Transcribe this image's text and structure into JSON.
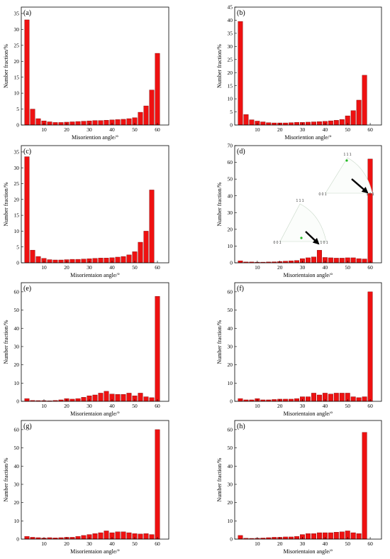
{
  "colors": {
    "bar_fill": "#ee1111",
    "bar_stroke": "#7a0000",
    "axis": "#000000",
    "arrow": "#000000",
    "ipf_point": "#22bb22"
  },
  "chart_data": [
    {
      "type": "bar",
      "panel": "(a)",
      "xlabel": "Misoriention angle/°",
      "ylabel": "Number fraction/%",
      "xlim": [
        0,
        65
      ],
      "ylim": [
        0,
        37
      ],
      "xticks": [
        10,
        20,
        30,
        40,
        50,
        60
      ],
      "yticks": [
        0,
        5,
        10,
        15,
        20,
        25,
        30,
        35
      ],
      "x": [
        2.5,
        5,
        7.5,
        10,
        12.5,
        15,
        17.5,
        20,
        22.5,
        25,
        27.5,
        30,
        32.5,
        35,
        37.5,
        40,
        42.5,
        45,
        47.5,
        50,
        52.5,
        55,
        57.5,
        60
      ],
      "values": [
        33,
        5,
        2,
        1.3,
        1,
        0.8,
        0.8,
        0.9,
        1,
        1.1,
        1.2,
        1.3,
        1.4,
        1.4,
        1.5,
        1.6,
        1.7,
        1.8,
        2,
        2.3,
        4,
        6,
        11,
        22.5
      ]
    },
    {
      "type": "bar",
      "panel": "(b)",
      "xlabel": "Misoriention angle/°",
      "ylabel": "Number fraction/%",
      "xlim": [
        0,
        65
      ],
      "ylim": [
        0,
        45
      ],
      "xticks": [
        10,
        20,
        30,
        40,
        50,
        60
      ],
      "yticks": [
        0,
        5,
        10,
        15,
        20,
        25,
        30,
        35,
        40,
        45
      ],
      "x": [
        2.5,
        5,
        7.5,
        10,
        12.5,
        15,
        17.5,
        20,
        22.5,
        25,
        27.5,
        30,
        32.5,
        35,
        37.5,
        40,
        42.5,
        45,
        47.5,
        50,
        52.5,
        55,
        57.5,
        60
      ],
      "values": [
        39.5,
        4,
        2,
        1.5,
        1.2,
        0.9,
        0.8,
        0.8,
        0.8,
        0.9,
        1,
        1,
        1.1,
        1.2,
        1.3,
        1.4,
        1.6,
        1.8,
        2.1,
        3.5,
        5.5,
        9.5,
        19,
        0
      ]
    },
    {
      "type": "bar",
      "panel": "(c)",
      "xlabel": "Misorientaion angle/°",
      "ylabel": "Number fraction/%",
      "xlim": [
        0,
        65
      ],
      "ylim": [
        0,
        37
      ],
      "xticks": [
        10,
        20,
        30,
        40,
        50,
        60
      ],
      "yticks": [
        0,
        5,
        10,
        15,
        20,
        25,
        30,
        35
      ],
      "x": [
        2.5,
        5,
        7.5,
        10,
        12.5,
        15,
        17.5,
        20,
        22.5,
        25,
        27.5,
        30,
        32.5,
        35,
        37.5,
        40,
        42.5,
        45,
        47.5,
        50,
        52.5,
        55,
        57.5,
        60
      ],
      "values": [
        33.5,
        4,
        2,
        1.4,
        1,
        0.9,
        0.9,
        1,
        1.1,
        1.1,
        1.2,
        1.3,
        1.4,
        1.5,
        1.5,
        1.6,
        1.8,
        2,
        2.5,
        3.5,
        6.5,
        10,
        23,
        0
      ]
    },
    {
      "type": "bar",
      "panel": "(d)",
      "xlabel": "Misorientaion angle/°",
      "ylabel": "Number fraction/%",
      "xlim": [
        0,
        65
      ],
      "ylim": [
        0,
        70
      ],
      "xticks": [
        10,
        20,
        30,
        40,
        50,
        60
      ],
      "yticks": [
        0,
        10,
        20,
        30,
        40,
        50,
        60,
        70
      ],
      "x": [
        2.5,
        5,
        7.5,
        10,
        12.5,
        15,
        17.5,
        20,
        22.5,
        25,
        27.5,
        30,
        32.5,
        35,
        37.5,
        40,
        42.5,
        45,
        47.5,
        50,
        52.5,
        55,
        57.5,
        60
      ],
      "values": [
        1.2,
        0.5,
        0.5,
        0.4,
        0.4,
        0.5,
        0.6,
        0.8,
        1,
        1.2,
        1.4,
        2.5,
        3,
        3.5,
        7.5,
        3.2,
        3,
        2.8,
        2.8,
        3,
        3,
        2.5,
        2.3,
        62
      ],
      "insets": [
        {
          "labels": [
            "1 1 1",
            "0 0 1",
            "1 0 1"
          ]
        },
        {
          "labels": [
            "1 1 1",
            "0 0 1",
            "1 0 1"
          ]
        }
      ]
    },
    {
      "type": "bar",
      "panel": "(e)",
      "xlabel": "Misorientaion angle/°",
      "ylabel": "Number fraction/%",
      "xlim": [
        0,
        65
      ],
      "ylim": [
        0,
        65
      ],
      "xticks": [
        10,
        20,
        30,
        40,
        50,
        60
      ],
      "yticks": [
        0,
        10,
        20,
        30,
        40,
        50,
        60
      ],
      "x": [
        2.5,
        5,
        7.5,
        10,
        12.5,
        15,
        17.5,
        20,
        22.5,
        25,
        27.5,
        30,
        32.5,
        35,
        37.5,
        40,
        42.5,
        45,
        47.5,
        50,
        52.5,
        55,
        57.5,
        60
      ],
      "values": [
        1.5,
        0.5,
        0.4,
        0.4,
        0.3,
        0.5,
        0.8,
        1.5,
        1.2,
        1.5,
        2.2,
        3,
        3.5,
        4.5,
        5.5,
        4,
        3.8,
        3.8,
        4.5,
        3,
        4.5,
        2.5,
        2,
        57.5
      ]
    },
    {
      "type": "bar",
      "panel": "(f)",
      "xlabel": "Misorientaion angle/°",
      "ylabel": "Number fraction/%",
      "xlim": [
        0,
        65
      ],
      "ylim": [
        0,
        65
      ],
      "xticks": [
        10,
        20,
        30,
        40,
        50,
        60
      ],
      "yticks": [
        0,
        10,
        20,
        30,
        40,
        50,
        60
      ],
      "x": [
        2.5,
        5,
        7.5,
        10,
        12.5,
        15,
        17.5,
        20,
        22.5,
        25,
        27.5,
        30,
        32.5,
        35,
        37.5,
        40,
        42.5,
        45,
        47.5,
        50,
        52.5,
        55,
        57.5,
        60
      ],
      "values": [
        1.5,
        0.8,
        0.8,
        1.5,
        0.8,
        0.8,
        1,
        1.2,
        1.2,
        1.2,
        1.5,
        2.5,
        2.5,
        4.5,
        3.5,
        4.5,
        4,
        4.5,
        4.5,
        4.5,
        2.5,
        2,
        2.5,
        60
      ]
    },
    {
      "type": "bar",
      "panel": "(g)",
      "xlabel": "Misorientaion angle/°",
      "ylabel": "Number fraction/%",
      "xlim": [
        0,
        65
      ],
      "ylim": [
        0,
        65
      ],
      "xticks": [
        10,
        20,
        30,
        40,
        50,
        60
      ],
      "yticks": [
        0,
        10,
        20,
        30,
        40,
        50,
        60
      ],
      "x": [
        2.5,
        5,
        7.5,
        10,
        12.5,
        15,
        17.5,
        20,
        22.5,
        25,
        27.5,
        30,
        32.5,
        35,
        37.5,
        40,
        42.5,
        45,
        47.5,
        50,
        52.5,
        55,
        57.5,
        60
      ],
      "values": [
        1.5,
        1,
        0.8,
        0.6,
        0.8,
        0.7,
        0.8,
        1,
        1,
        1.5,
        2,
        2.5,
        3,
        3.5,
        4.5,
        3.5,
        4,
        4,
        3.5,
        3,
        2.8,
        3,
        2.5,
        60
      ]
    },
    {
      "type": "bar",
      "panel": "(h)",
      "xlabel": "Misorientaion angle/°",
      "ylabel": "Number fraction/%",
      "xlim": [
        0,
        65
      ],
      "ylim": [
        0,
        65
      ],
      "xticks": [
        10,
        20,
        30,
        40,
        50,
        60
      ],
      "yticks": [
        0,
        10,
        20,
        30,
        40,
        50,
        60
      ],
      "x": [
        2.5,
        5,
        7.5,
        10,
        12.5,
        15,
        17.5,
        20,
        22.5,
        25,
        27.5,
        30,
        32.5,
        35,
        37.5,
        40,
        42.5,
        45,
        47.5,
        50,
        52.5,
        55,
        57.5,
        60
      ],
      "values": [
        2,
        0.5,
        0.4,
        0.5,
        0.6,
        0.8,
        1,
        1,
        1.2,
        1.2,
        1.5,
        2.5,
        3,
        3,
        3.5,
        3.5,
        3.5,
        3.8,
        4,
        4.5,
        3.5,
        3,
        58.5,
        0
      ]
    }
  ]
}
